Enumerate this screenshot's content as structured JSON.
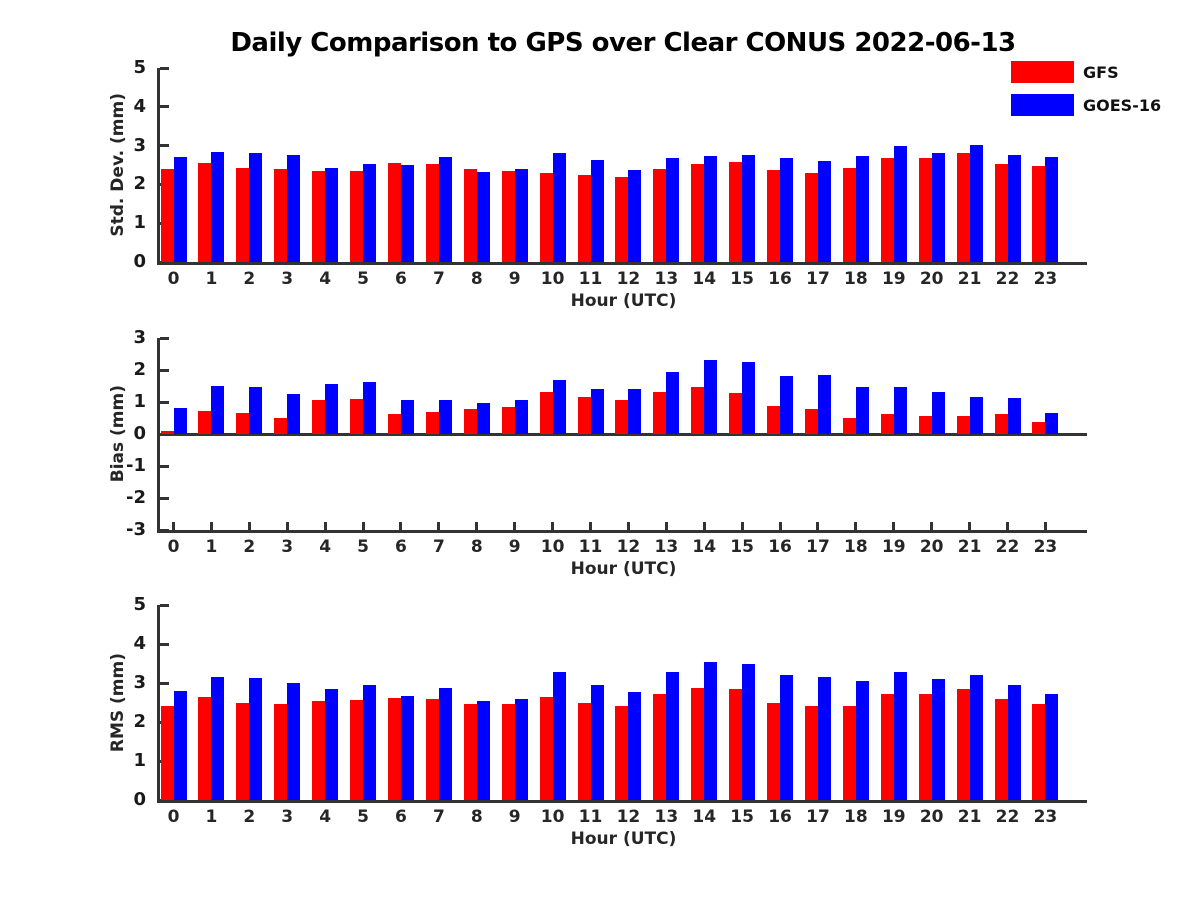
{
  "title": "Daily Comparison to GPS over Clear CONUS 2022-06-13",
  "legend": {
    "position": "upper-right-outside-plot",
    "items": [
      {
        "label": "GFS",
        "color": "#ff0000"
      },
      {
        "label": "GOES-16",
        "color": "#0000ff"
      }
    ]
  },
  "chart_data": [
    {
      "type": "bar",
      "title": "",
      "ylabel": "Std. Dev. (mm)",
      "xlabel": "Hour (UTC)",
      "ylim": [
        0,
        5
      ],
      "yticks": [
        0,
        1,
        2,
        3,
        4,
        5
      ],
      "grid": false,
      "categories": [
        "0",
        "1",
        "2",
        "3",
        "4",
        "5",
        "6",
        "7",
        "8",
        "9",
        "10",
        "11",
        "12",
        "13",
        "14",
        "15",
        "16",
        "17",
        "18",
        "19",
        "20",
        "21",
        "22",
        "23"
      ],
      "series": [
        {
          "name": "GFS",
          "color": "#ff0000",
          "values": [
            2.4,
            2.55,
            2.42,
            2.4,
            2.35,
            2.35,
            2.54,
            2.52,
            2.4,
            2.35,
            2.3,
            2.23,
            2.18,
            2.4,
            2.52,
            2.58,
            2.37,
            2.29,
            2.43,
            2.67,
            2.67,
            2.8,
            2.53,
            2.48
          ]
        },
        {
          "name": "GOES-16",
          "color": "#0000ff",
          "values": [
            2.7,
            2.83,
            2.8,
            2.75,
            2.43,
            2.52,
            2.51,
            2.71,
            2.33,
            2.4,
            2.82,
            2.63,
            2.38,
            2.68,
            2.74,
            2.75,
            2.67,
            2.61,
            2.72,
            2.98,
            2.82,
            3.02,
            2.75,
            2.7
          ]
        }
      ]
    },
    {
      "type": "bar",
      "title": "",
      "ylabel": "Bias (mm)",
      "xlabel": "Hour (UTC)",
      "ylim": [
        -3,
        3
      ],
      "yticks": [
        -3,
        -2,
        -1,
        0,
        1,
        2,
        3
      ],
      "grid": false,
      "categories": [
        "0",
        "1",
        "2",
        "3",
        "4",
        "5",
        "6",
        "7",
        "8",
        "9",
        "10",
        "11",
        "12",
        "13",
        "14",
        "15",
        "16",
        "17",
        "18",
        "19",
        "20",
        "21",
        "22",
        "23"
      ],
      "series": [
        {
          "name": "GFS",
          "color": "#ff0000",
          "values": [
            0.09,
            0.72,
            0.67,
            0.49,
            1.06,
            1.09,
            0.62,
            0.69,
            0.78,
            0.84,
            1.31,
            1.16,
            1.06,
            1.31,
            1.47,
            1.28,
            0.88,
            0.79,
            0.51,
            0.62,
            0.55,
            0.56,
            0.64,
            0.37
          ]
        },
        {
          "name": "GOES-16",
          "color": "#0000ff",
          "values": [
            0.8,
            1.5,
            1.46,
            1.24,
            1.57,
            1.62,
            1.07,
            1.05,
            0.97,
            1.05,
            1.7,
            1.41,
            1.4,
            1.93,
            2.3,
            2.24,
            1.8,
            1.83,
            1.47,
            1.47,
            1.31,
            1.16,
            1.11,
            0.65
          ]
        }
      ]
    },
    {
      "type": "bar",
      "title": "",
      "ylabel": "RMS (mm)",
      "xlabel": "Hour (UTC)",
      "ylim": [
        0,
        5
      ],
      "yticks": [
        0,
        1,
        2,
        3,
        4,
        5
      ],
      "grid": false,
      "categories": [
        "0",
        "1",
        "2",
        "3",
        "4",
        "5",
        "6",
        "7",
        "8",
        "9",
        "10",
        "11",
        "12",
        "13",
        "14",
        "15",
        "16",
        "17",
        "18",
        "19",
        "20",
        "21",
        "22",
        "23"
      ],
      "series": [
        {
          "name": "GFS",
          "color": "#ff0000",
          "values": [
            2.41,
            2.63,
            2.49,
            2.45,
            2.54,
            2.56,
            2.61,
            2.6,
            2.47,
            2.46,
            2.63,
            2.49,
            2.42,
            2.73,
            2.86,
            2.85,
            2.48,
            2.4,
            2.42,
            2.71,
            2.71,
            2.85,
            2.59,
            2.45
          ]
        },
        {
          "name": "GOES-16",
          "color": "#0000ff",
          "values": [
            2.8,
            3.15,
            3.12,
            2.99,
            2.85,
            2.94,
            2.67,
            2.86,
            2.54,
            2.59,
            3.29,
            2.96,
            2.78,
            3.29,
            3.55,
            3.5,
            3.2,
            3.15,
            3.05,
            3.28,
            3.09,
            3.21,
            2.95,
            2.73
          ]
        }
      ]
    }
  ]
}
